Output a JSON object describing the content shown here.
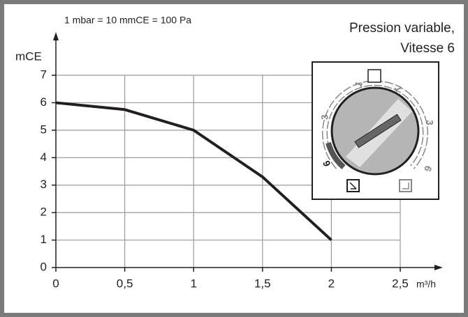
{
  "chart_data": {
    "type": "line",
    "title": "Pression variable,",
    "subtitle": "Vitesse 6",
    "annotation": "1 mbar = 10 mmCE = 100 Pa",
    "y_label": "mCE",
    "x_label": "m³/h",
    "x": [
      0,
      0.5,
      1,
      1.5,
      2
    ],
    "values": [
      6,
      5.75,
      5,
      3.3,
      1
    ],
    "color": "#231f20",
    "xlim": [
      0,
      2.5
    ],
    "xticks": [
      0,
      {
        "value": 0.5,
        "label": "0,5"
      },
      1,
      {
        "value": 1.5,
        "label": "1,5"
      },
      2,
      {
        "value": 2.5,
        "label": "2,5"
      }
    ],
    "ylim": [
      0,
      7
    ],
    "yticks": [
      0,
      1,
      2,
      3,
      4,
      5,
      6,
      7
    ],
    "grid": true,
    "inset_labels": [
      "1",
      "1",
      "3",
      "3",
      "6",
      "6"
    ]
  }
}
